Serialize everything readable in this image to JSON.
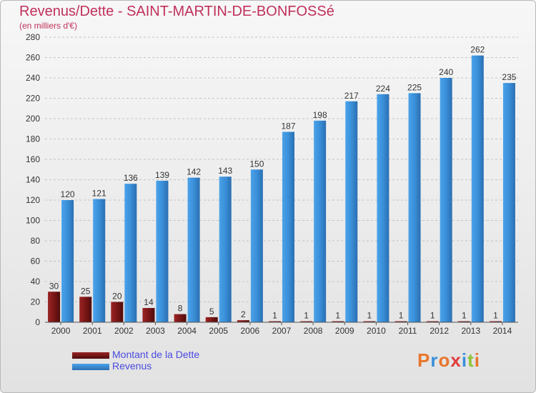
{
  "header": {
    "title": "Revenus/Dette - SAINT-MARTIN-DE-BONFOSSé",
    "subtitle": "(en milliers d'€)"
  },
  "chart_data": {
    "type": "bar",
    "categories": [
      "2000",
      "2001",
      "2002",
      "2003",
      "2004",
      "2005",
      "2006",
      "2007",
      "2008",
      "2009",
      "2010",
      "2011",
      "2012",
      "2013",
      "2014"
    ],
    "series": [
      {
        "name": "Montant de la Dette",
        "color": "#7a1616",
        "values": [
          30,
          25,
          20,
          14,
          8,
          5,
          2,
          1,
          1,
          1,
          1,
          1,
          1,
          1,
          1
        ]
      },
      {
        "name": "Revenus",
        "color": "#3a8fd8",
        "values": [
          120,
          121,
          136,
          139,
          142,
          143,
          150,
          187,
          198,
          217,
          224,
          225,
          240,
          262,
          235
        ]
      }
    ],
    "yticks": [
      0,
      20,
      40,
      60,
      80,
      100,
      120,
      140,
      160,
      180,
      200,
      220,
      240,
      260,
      280
    ],
    "ylim": [
      0,
      280
    ],
    "grid": true,
    "legend_position": "bottom-left"
  },
  "logo": {
    "text": "Proxiti",
    "colors": [
      "#e8762c",
      "#3a8fd8",
      "#e8762c",
      "#e23b3b",
      "#3a8fd8",
      "#8fc33a",
      "#e8762c"
    ]
  }
}
